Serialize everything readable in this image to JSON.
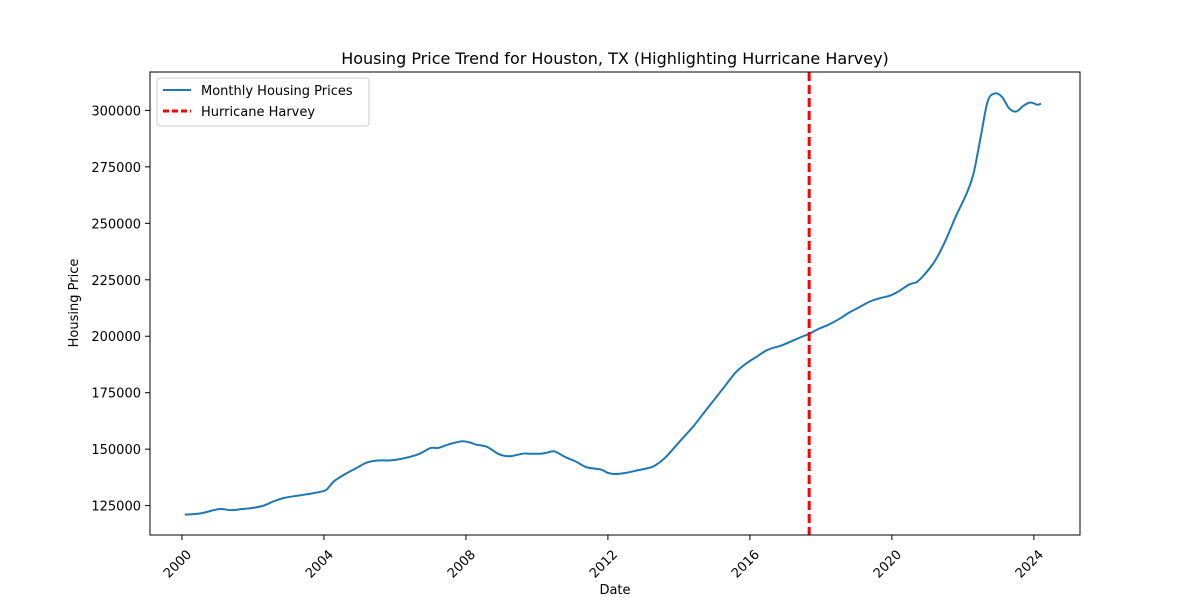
{
  "chart_data": {
    "type": "line",
    "title": "Housing Price Trend for Houston, TX (Highlighting Hurricane Harvey)",
    "xlabel": "Date",
    "ylabel": "Housing Price",
    "xlim": [
      1999.1,
      2025.3
    ],
    "ylim": [
      112000,
      317000
    ],
    "x_ticks": [
      2000,
      2004,
      2008,
      2012,
      2016,
      2020,
      2024
    ],
    "x_tick_labels": [
      "2000",
      "2004",
      "2008",
      "2012",
      "2016",
      "2020",
      "2024"
    ],
    "y_ticks": [
      125000,
      150000,
      175000,
      200000,
      225000,
      250000,
      275000,
      300000
    ],
    "y_tick_labels": [
      "125000",
      "150000",
      "175000",
      "200000",
      "225000",
      "250000",
      "275000",
      "300000"
    ],
    "grid": false,
    "legend_position": "top-left",
    "series": [
      {
        "name": "Monthly Housing Prices",
        "color": "#1f77b4",
        "style": "solid",
        "x": [
          2000.08,
          2000.5,
          2000.9,
          2001.1,
          2001.4,
          2001.7,
          2002.0,
          2002.3,
          2002.6,
          2002.9,
          2003.3,
          2003.7,
          2004.0,
          2004.1,
          2004.3,
          2004.6,
          2004.9,
          2005.2,
          2005.5,
          2005.8,
          2006.1,
          2006.4,
          2006.7,
          2007.0,
          2007.2,
          2007.4,
          2007.6,
          2007.9,
          2008.1,
          2008.3,
          2008.6,
          2008.9,
          2009.1,
          2009.3,
          2009.6,
          2009.8,
          2010.1,
          2010.3,
          2010.5,
          2010.8,
          2011.1,
          2011.4,
          2011.8,
          2012.0,
          2012.2,
          2012.5,
          2012.8,
          2013.1,
          2013.3,
          2013.6,
          2014.0,
          2014.4,
          2014.7,
          2015.0,
          2015.3,
          2015.6,
          2015.9,
          2016.2,
          2016.5,
          2016.9,
          2017.2,
          2017.5,
          2017.67,
          2017.9,
          2018.2,
          2018.5,
          2018.8,
          2019.1,
          2019.4,
          2019.7,
          2019.95,
          2020.2,
          2020.5,
          2020.7,
          2020.9,
          2021.2,
          2021.5,
          2021.8,
          2022.1,
          2022.3,
          2022.5,
          2022.7,
          2022.9,
          2023.1,
          2023.3,
          2023.5,
          2023.7,
          2023.9,
          2024.1,
          2024.2
        ],
        "y": [
          121000,
          121500,
          123000,
          123500,
          123000,
          123500,
          124000,
          125000,
          127000,
          128500,
          129500,
          130500,
          131500,
          132500,
          136000,
          139000,
          141500,
          144000,
          145000,
          145000,
          145500,
          146500,
          148000,
          150500,
          150500,
          151500,
          152500,
          153500,
          153000,
          152000,
          151000,
          148000,
          147000,
          147000,
          148000,
          148000,
          148000,
          148500,
          149000,
          146500,
          144500,
          142000,
          141000,
          139500,
          139000,
          139500,
          140500,
          141500,
          142500,
          146000,
          153000,
          160000,
          166000,
          172000,
          178000,
          184000,
          188000,
          191000,
          194000,
          196000,
          198000,
          200000,
          201000,
          203000,
          205000,
          207500,
          210500,
          213000,
          215500,
          217000,
          218000,
          220000,
          223000,
          224000,
          227000,
          233000,
          242000,
          253000,
          263000,
          272000,
          288000,
          304000,
          307500,
          306000,
          301000,
          299500,
          302000,
          303500,
          302500,
          303000
        ]
      }
    ],
    "annotations": [
      {
        "name": "Hurricane Harvey",
        "type": "vline",
        "x": 2017.67,
        "color": "#ff0000",
        "style": "dashed"
      }
    ]
  }
}
